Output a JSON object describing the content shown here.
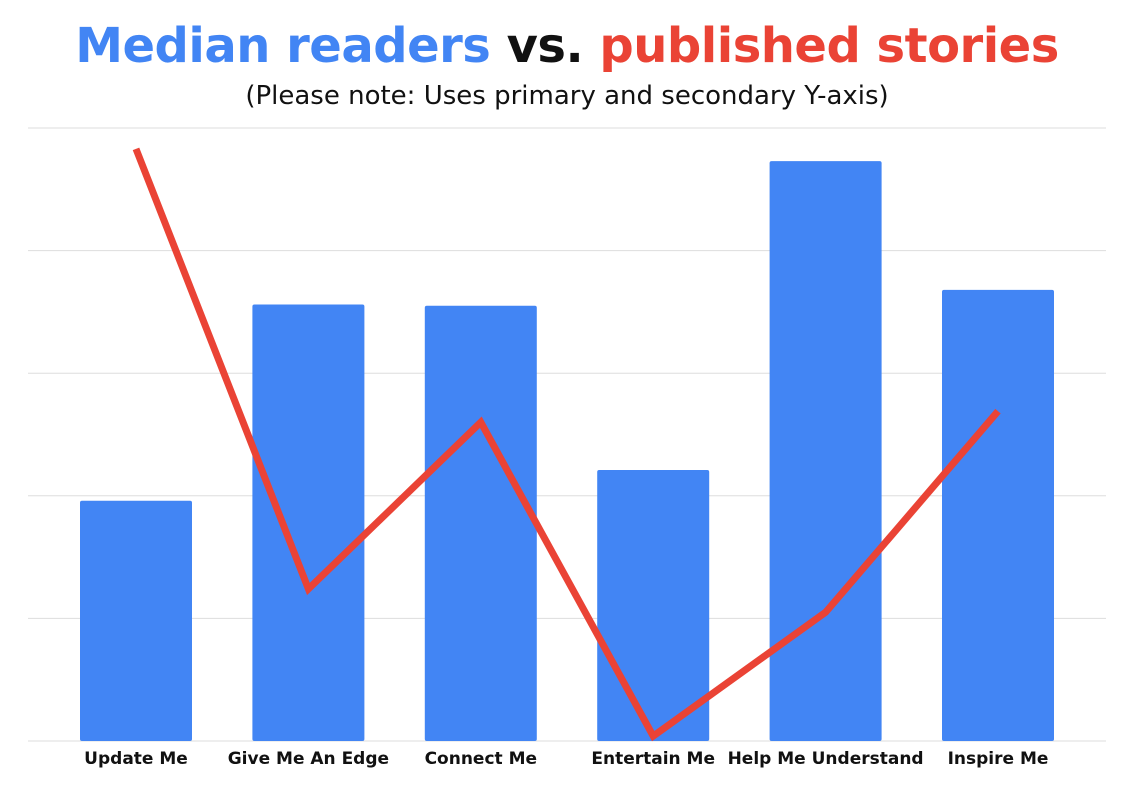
{
  "title": {
    "part1": "Median readers",
    "part2": " vs. ",
    "part3": "published stories"
  },
  "subtitle": "(Please note: Uses primary and secondary Y-axis)",
  "colors": {
    "bars": "#4285F4",
    "line": "#EA4335",
    "title_dark": "#111111",
    "grid": "#dddddd"
  },
  "chart_data": {
    "type": "bar",
    "title": "Median readers vs. published stories",
    "subtitle": "(Please note: Uses primary and secondary Y-axis)",
    "categories": [
      "Update Me",
      "Give Me An Edge",
      "Connect Me",
      "Entertain Me",
      "Help Me Understand",
      "Inspire Me"
    ],
    "series": [
      {
        "name": "Median readers",
        "type": "bar",
        "axis": "primary",
        "values": [
          19.6,
          35.6,
          35.5,
          22.1,
          47.3,
          36.8
        ]
      },
      {
        "name": "published stories",
        "type": "line",
        "axis": "secondary",
        "values": [
          48.3,
          12.4,
          26.0,
          0.4,
          10.5,
          26.9
        ]
      }
    ],
    "ylim": [
      0,
      50
    ],
    "y2lim": [
      0,
      50
    ],
    "grid": true,
    "legend": "none"
  }
}
